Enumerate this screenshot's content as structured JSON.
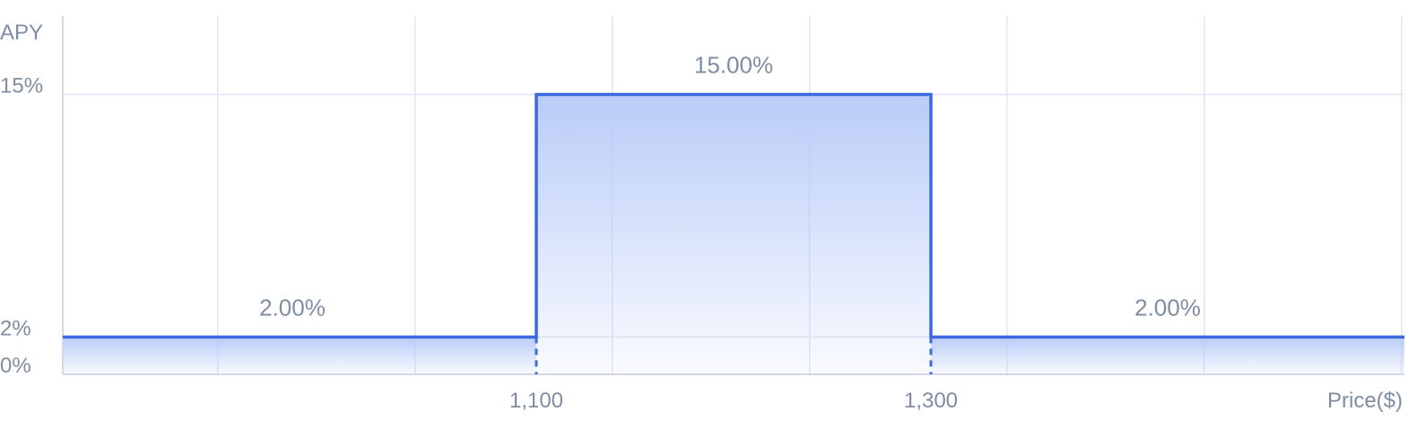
{
  "chart_data": {
    "type": "area",
    "step": true,
    "title": "",
    "xlabel": "Price($)",
    "ylabel": "APY",
    "y_ticks": [
      "15%",
      "2%",
      "0%"
    ],
    "y_tick_values": [
      15,
      2,
      0
    ],
    "x_ticks": [
      "1,100",
      "1,300"
    ],
    "x_tick_values": [
      1100,
      1300
    ],
    "xlim": [
      860,
      1540
    ],
    "ylim": [
      0,
      19.2
    ],
    "grid": true,
    "legend": "none",
    "segments": [
      {
        "x_start": 860,
        "x_end": 1100,
        "apy": 2,
        "label": "2.00%"
      },
      {
        "x_start": 1100,
        "x_end": 1300,
        "apy": 15,
        "label": "15.00%"
      },
      {
        "x_start": 1300,
        "x_end": 1540,
        "apy": 2,
        "label": "2.00%"
      }
    ],
    "colors": {
      "line": "#3d68e0",
      "fill": "#b9ccf8",
      "grid": "#e1e4f3",
      "text": "#7f8da3"
    }
  }
}
